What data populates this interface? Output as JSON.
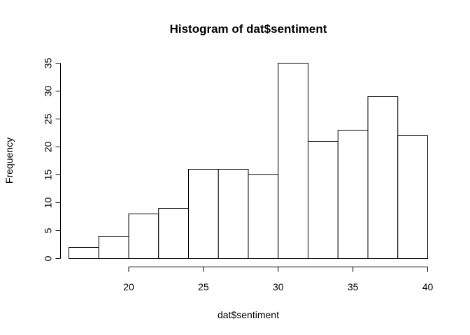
{
  "chart_data": {
    "type": "bar",
    "title": "Histogram of dat$sentiment",
    "xlabel": "dat$sentiment",
    "ylabel": "Frequency",
    "bin_edges": [
      16,
      18,
      20,
      22,
      24,
      26,
      28,
      30,
      32,
      34,
      36,
      38,
      40
    ],
    "values": [
      2,
      4,
      8,
      9,
      16,
      16,
      15,
      35,
      21,
      23,
      29,
      22
    ],
    "xlim": [
      16,
      40
    ],
    "ylim": [
      0,
      35
    ],
    "x_ticks": [
      20,
      25,
      30,
      35,
      40
    ],
    "y_ticks": [
      0,
      5,
      10,
      15,
      20,
      25,
      30,
      35
    ],
    "grid": false,
    "bar_fill": "#ffffff",
    "bar_stroke": "#000000"
  }
}
